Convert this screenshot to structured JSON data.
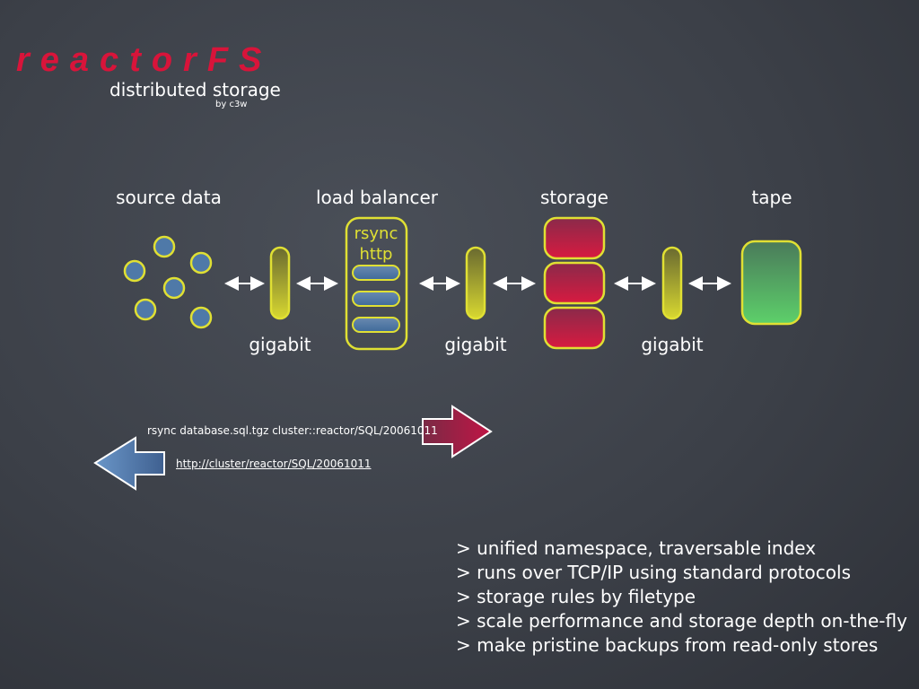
{
  "header": {
    "title": "reactorFS",
    "subtitle": "distributed storage",
    "byline": "by c3w"
  },
  "diagram": {
    "stages": {
      "source": "source data",
      "balancer": "load balancer",
      "storage": "storage",
      "tape": "tape"
    },
    "link_label": "gigabit",
    "balancer_protocols": [
      "rsync",
      "http"
    ],
    "colors": {
      "node_fill": "#4f79a8",
      "outline": "#e0e033",
      "storage_fill": "#c01545",
      "tape_fill": "#5dbf6a",
      "push_arrow": "#a81e45",
      "pull_arrow": "#4f79a8"
    }
  },
  "commands": {
    "push": "rsync database.sql.tgz cluster::reactor/SQL/20061011",
    "pull": "http://cluster/reactor/SQL/20061011"
  },
  "features": [
    "> unified namespace, traversable index",
    "> runs over TCP/IP using standard protocols",
    "> storage rules by filetype",
    "> scale performance and storage depth on-the-fly",
    "> make pristine backups from read-only stores"
  ]
}
